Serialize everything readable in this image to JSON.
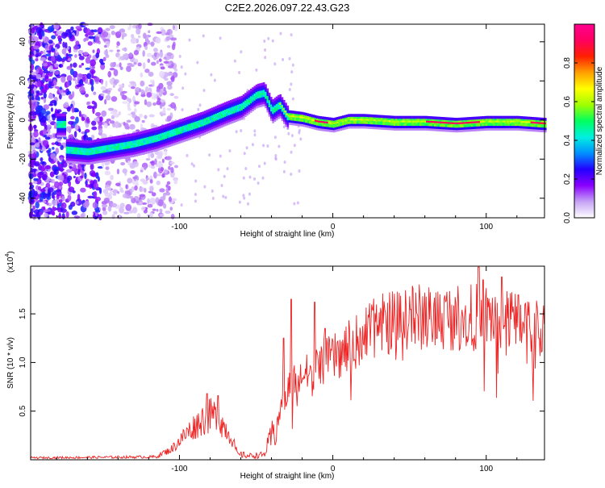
{
  "title": "C2E2.2026.097.22.43.G23",
  "chart_data": [
    {
      "type": "heatmap",
      "name": "spectrogram",
      "xlabel": "Height of straight line (km)",
      "ylabel": "Frequency (Hz)",
      "xlim": [
        -197,
        138
      ],
      "ylim": [
        -50,
        49
      ],
      "xticks": [
        -100,
        0,
        100
      ],
      "yticks": [
        -40,
        -20,
        0,
        20,
        40
      ],
      "colorbar": {
        "label": "Normalized spectral amplitude",
        "range": [
          0,
          1
        ],
        "ticks": [
          "0.0",
          "0.2",
          "0.4",
          "0.6",
          "0.8"
        ],
        "tick_values": [
          0,
          0.2,
          0.4,
          0.6,
          0.8
        ],
        "colors": [
          "#ffffff",
          "#c6a3f5",
          "#8a00ff",
          "#2200ff",
          "#0090ff",
          "#00f0e0",
          "#00ff60",
          "#a0ff00",
          "#ffff00",
          "#ffa000",
          "#ff2000",
          "#ff0060",
          "#ff0090"
        ]
      },
      "ridge": [
        [
          -175,
          -15
        ],
        [
          -160,
          -16
        ],
        [
          -145,
          -14
        ],
        [
          -130,
          -12
        ],
        [
          -115,
          -9
        ],
        [
          -100,
          -5
        ],
        [
          -85,
          -1
        ],
        [
          -70,
          4
        ],
        [
          -60,
          7
        ],
        [
          -50,
          13
        ],
        [
          -45,
          14
        ],
        [
          -40,
          5
        ],
        [
          -35,
          8
        ],
        [
          -30,
          2
        ],
        [
          -20,
          1
        ],
        [
          -10,
          -1
        ],
        [
          0,
          -2
        ],
        [
          10,
          0
        ],
        [
          20,
          0
        ],
        [
          40,
          -1
        ],
        [
          60,
          -1
        ],
        [
          80,
          -2
        ],
        [
          100,
          -1
        ],
        [
          120,
          -1
        ],
        [
          138,
          -2
        ]
      ]
    },
    {
      "type": "line",
      "name": "snr",
      "xlabel": "Height of straight line (km)",
      "ylabel": "SNR (10 * v/v)",
      "multiplier": "(x10",
      "multiplier_exp": "4",
      "multiplier_close": ")",
      "xlim": [
        -197,
        138
      ],
      "ylim": [
        0,
        1.99
      ],
      "xticks": [
        -100,
        0,
        100
      ],
      "yticks": [
        0.5,
        1.0,
        1.5
      ],
      "ytick_labels": [
        "0.5",
        "1.0",
        "1.5"
      ],
      "color": "#ee2222",
      "envelope": {
        "x": [
          -197,
          -115,
          -105,
          -95,
          -85,
          -78,
          -72,
          -66,
          -62,
          -55,
          -45,
          -38,
          -32,
          -27,
          -22,
          -15,
          -10,
          -5,
          0,
          10,
          20,
          30,
          40,
          50,
          60,
          70,
          80,
          90,
          100,
          110,
          120,
          130,
          138
        ],
        "y": [
          0.02,
          0.03,
          0.12,
          0.3,
          0.45,
          0.5,
          0.4,
          0.25,
          0.06,
          0.04,
          0.05,
          0.3,
          0.65,
          0.85,
          0.9,
          0.95,
          1.02,
          1.08,
          1.1,
          1.22,
          1.35,
          1.45,
          1.52,
          1.56,
          1.55,
          1.55,
          1.56,
          1.55,
          1.56,
          1.55,
          1.5,
          1.45,
          1.4
        ]
      },
      "peaks": [
        [
          -82,
          0.68
        ],
        [
          -75,
          0.66
        ],
        [
          -32,
          1.25
        ],
        [
          -27,
          1.65
        ],
        [
          -12,
          1.62
        ],
        [
          -5,
          1.35
        ],
        [
          95,
          1.98
        ],
        [
          110,
          1.88
        ],
        [
          98,
          1.85
        ]
      ]
    }
  ]
}
